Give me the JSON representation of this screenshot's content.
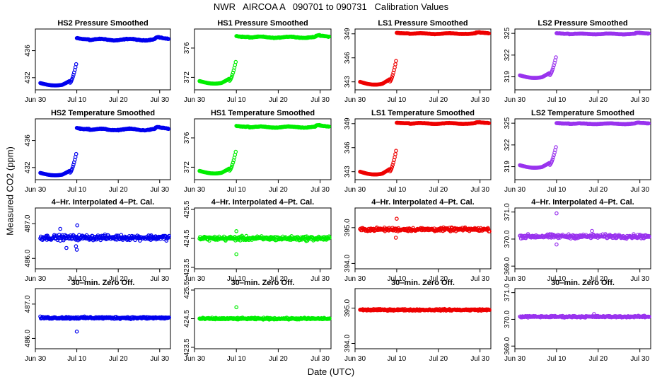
{
  "page_title": "NWR   AIRCOA A   090701 to 090731   Calibration Values",
  "y_axis_label": "Measured CO2 (ppm)",
  "x_axis_label": "Date (UTC)",
  "colors": {
    "HS2": "#0000ee",
    "HS1": "#00ee00",
    "LS1": "#ee0000",
    "LS2": "#9933ee"
  },
  "chart_data": {
    "type": "scatter",
    "x_range_days": [
      0,
      32.6
    ],
    "x_ticks": [
      {
        "label": "Jun 30",
        "day": 0
      },
      {
        "label": "Jul 10",
        "day": 10
      },
      {
        "label": "Jul 20",
        "day": 20
      },
      {
        "label": "Jul 30",
        "day": 30
      }
    ],
    "rows": [
      {
        "kind": "smoothed",
        "title_suffix": "Pressure Smoothed",
        "panels": [
          {
            "id": "HS2",
            "title": "HS2 Pressure Smoothed",
            "ylim": [
              430.2,
              439.2
            ],
            "yticks": [
              "432",
              "436"
            ],
            "ytick_values": [
              432,
              436
            ],
            "low": 431.2,
            "high": 437.8,
            "high_wiggle": 0.35
          },
          {
            "id": "HS1",
            "title": "HS1 Pressure Smoothed",
            "ylim": [
              370.3,
              378.6
            ],
            "yticks": [
              "372",
              "376"
            ],
            "ytick_values": [
              372,
              376
            ],
            "low": 371.5,
            "high": 377.6,
            "high_wiggle": 0.25
          },
          {
            "id": "LS1",
            "title": "LS1 Pressure Smoothed",
            "ylim": [
              342.0,
              349.6
            ],
            "yticks": [
              "343",
              "346",
              "349"
            ],
            "ytick_values": [
              343,
              346,
              349
            ],
            "low": 343.0,
            "high": 349.1,
            "high_wiggle": 0.15
          },
          {
            "id": "LS2",
            "title": "LS2 Pressure Smoothed",
            "ylim": [
              317.2,
              325.6
            ],
            "yticks": [
              "319",
              "322",
              "325"
            ],
            "ytick_values": [
              319,
              322,
              325
            ],
            "low": 319.2,
            "high": 325.0,
            "high_wiggle": 0.15
          }
        ]
      },
      {
        "kind": "smoothed",
        "title_suffix": "Temperature Smoothed",
        "panels": [
          {
            "id": "HS2",
            "title": "HS2 Temperature Smoothed",
            "ylim": [
              430.2,
              439.2
            ],
            "yticks": [
              "432",
              "436"
            ],
            "ytick_values": [
              432,
              436
            ],
            "low": 431.2,
            "high": 437.8,
            "high_wiggle": 0.35
          },
          {
            "id": "HS1",
            "title": "HS1 Temperature Smoothed",
            "ylim": [
              370.3,
              378.6
            ],
            "yticks": [
              "372",
              "376"
            ],
            "ytick_values": [
              372,
              376
            ],
            "low": 371.5,
            "high": 377.6,
            "high_wiggle": 0.25
          },
          {
            "id": "LS1",
            "title": "LS1 Temperature Smoothed",
            "ylim": [
              342.0,
              349.6
            ],
            "yticks": [
              "343",
              "346",
              "349"
            ],
            "ytick_values": [
              343,
              346,
              349
            ],
            "low": 343.0,
            "high": 349.1,
            "high_wiggle": 0.15
          },
          {
            "id": "LS2",
            "title": "LS2 Temperature Smoothed",
            "ylim": [
              317.2,
              325.6
            ],
            "yticks": [
              "319",
              "322",
              "325"
            ],
            "ytick_values": [
              319,
              322,
              325
            ],
            "low": 319.2,
            "high": 325.0,
            "high_wiggle": 0.15
          }
        ]
      },
      {
        "kind": "flat",
        "title_suffix": "4-Hr. Interpolated 4-Pt. Cal.",
        "panels": [
          {
            "id": "HS2",
            "title": "4–Hr. Interpolated 4–Pt. Cal.",
            "ylim": [
              485.7,
              487.45
            ],
            "yticks": [
              "486.0",
              "487.0"
            ],
            "ytick_values": [
              486.0,
              487.0
            ],
            "level": 486.6,
            "noise": 0.06,
            "outliers": [
              [
                10.0,
                486.25
              ],
              [
                10.1,
                486.95
              ],
              [
                9.8,
                486.35
              ],
              [
                7.5,
                486.3
              ],
              [
                6.0,
                486.85
              ]
            ]
          },
          {
            "id": "HS1",
            "title": "4–Hr. Interpolated 4–Pt. Cal.",
            "ylim": [
              423.45,
              425.55
            ],
            "yticks": [
              "423.5",
              "424.5",
              "425.5"
            ],
            "ytick_values": [
              423.5,
              424.5,
              425.5
            ],
            "level": 424.5,
            "noise": 0.06,
            "outliers": [
              [
                10.0,
                424.75
              ],
              [
                10.0,
                423.95
              ]
            ]
          },
          {
            "id": "LS1",
            "title": "4–Hr. Interpolated 4–Pt. Cal.",
            "ylim": [
              393.85,
              395.55
            ],
            "yticks": [
              "394.0",
              "395.0"
            ],
            "ytick_values": [
              394.0,
              395.0
            ],
            "level": 394.95,
            "noise": 0.04,
            "outliers": [
              [
                10.0,
                395.25
              ],
              [
                9.8,
                394.72
              ]
            ]
          },
          {
            "id": "LS2",
            "title": "4–Hr. Interpolated 4–Pt. Cal.",
            "ylim": [
              368.9,
              371.15
            ],
            "yticks": [
              "369.0",
              "370.0",
              "371.0"
            ],
            "ytick_values": [
              369.0,
              370.0,
              371.0
            ],
            "level": 370.1,
            "noise": 0.06,
            "outliers": [
              [
                10.0,
                370.95
              ],
              [
                18.5,
                370.3
              ],
              [
                10.0,
                369.8
              ]
            ]
          }
        ]
      },
      {
        "kind": "flat",
        "title_suffix": "30-min. Zero Off.",
        "panels": [
          {
            "id": "HS2",
            "title": "30–min. Zero Off.",
            "ylim": [
              485.7,
              487.45
            ],
            "yticks": [
              "486.0",
              "487.0"
            ],
            "ytick_values": [
              486.0,
              487.0
            ],
            "level": 486.6,
            "noise": 0.025,
            "outliers": [
              [
                10.0,
                486.2
              ]
            ]
          },
          {
            "id": "HS1",
            "title": "30–min. Zero Off.",
            "ylim": [
              423.45,
              425.55
            ],
            "yticks": [
              "423.5",
              "424.5",
              "425.5"
            ],
            "ytick_values": [
              423.5,
              424.5,
              425.5
            ],
            "level": 424.5,
            "noise": 0.025,
            "outliers": [
              [
                10.0,
                424.9
              ]
            ]
          },
          {
            "id": "LS1",
            "title": "30–min. Zero Off.",
            "ylim": [
              393.85,
              395.55
            ],
            "yticks": [
              "394.0",
              "395.0"
            ],
            "ytick_values": [
              394.0,
              395.0
            ],
            "level": 394.95,
            "noise": 0.018,
            "outliers": []
          },
          {
            "id": "LS2",
            "title": "30–min. Zero Off.",
            "ylim": [
              368.9,
              371.15
            ],
            "yticks": [
              "369.0",
              "370.0",
              "371.0"
            ],
            "ytick_values": [
              369.0,
              370.0,
              371.0
            ],
            "level": 370.1,
            "noise": 0.025,
            "outliers": [
              [
                19.0,
                370.2
              ]
            ]
          }
        ]
      }
    ]
  }
}
